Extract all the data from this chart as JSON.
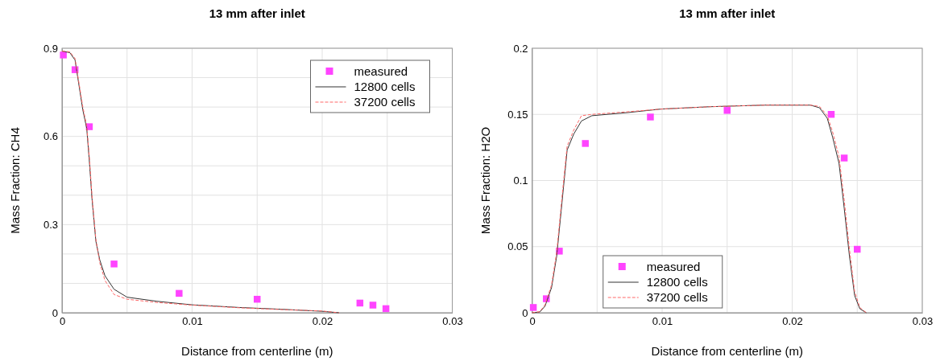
{
  "chart_data": [
    {
      "type": "line",
      "title": "13 mm after inlet",
      "xlabel": "Distance from centerline (m)",
      "ylabel": "Mass Fraction: CH4",
      "xlim": [
        0,
        0.03
      ],
      "ylim": [
        0,
        0.9
      ],
      "xticks": [
        0,
        {
          "value": 0.005,
          "label": null
        },
        0.01,
        {
          "value": 0.015,
          "label": null
        },
        0.02,
        {
          "value": 0.025,
          "label": null
        },
        0.03
      ],
      "yticks": [
        0,
        {
          "value": 0.1,
          "label": null
        },
        {
          "value": 0.2,
          "label": null
        },
        0.3,
        {
          "value": 0.4,
          "label": null
        },
        {
          "value": 0.5,
          "label": null
        },
        0.6,
        {
          "value": 0.7,
          "label": null
        },
        {
          "value": 0.8,
          "label": null
        },
        0.9
      ],
      "grid": true,
      "legend": "top right",
      "series": [
        {
          "name": "measured",
          "type": "scatter",
          "marker": "square",
          "color": "#ff44ff",
          "x": [
            0.0001,
            0.001,
            0.0021,
            0.004,
            0.009,
            0.015,
            0.0229,
            0.0239,
            0.0249
          ],
          "values": [
            0.877,
            0.827,
            0.633,
            0.166,
            0.066,
            0.046,
            0.033,
            0.026,
            0.014
          ]
        },
        {
          "name": "12800 cells",
          "type": "line",
          "line_style": "solid",
          "color": "#333333",
          "x": [
            0,
            0.0006,
            0.001,
            0.0016,
            0.0019,
            0.0021,
            0.0023,
            0.0026,
            0.0029,
            0.0033,
            0.004,
            0.005,
            0.0073,
            0.01,
            0.0136,
            0.0168,
            0.02,
            0.0213
          ],
          "values": [
            0.89,
            0.885,
            0.86,
            0.69,
            0.627,
            0.517,
            0.39,
            0.244,
            0.18,
            0.126,
            0.08,
            0.053,
            0.039,
            0.027,
            0.018,
            0.012,
            0.005,
            0
          ]
        },
        {
          "name": "37200 cells",
          "type": "line",
          "line_style": "dashed",
          "color": "#ff6666",
          "x": [
            0,
            0.0006,
            0.001,
            0.0016,
            0.0019,
            0.0021,
            0.0023,
            0.0026,
            0.0029,
            0.0033,
            0.004,
            0.005,
            0.0073,
            0.01,
            0.0136,
            0.0168,
            0.02,
            0.0213
          ],
          "values": [
            0.89,
            0.888,
            0.865,
            0.7,
            0.635,
            0.53,
            0.4,
            0.25,
            0.17,
            0.11,
            0.062,
            0.046,
            0.035,
            0.026,
            0.017,
            0.011,
            0.006,
            0
          ]
        }
      ]
    },
    {
      "type": "line",
      "title": "13 mm after inlet",
      "xlabel": "Distance from centerline (m)",
      "ylabel": "Mass Fraction: H2O",
      "xlim": [
        0,
        0.03
      ],
      "ylim": [
        0,
        0.2
      ],
      "xticks": [
        0,
        {
          "value": 0.005,
          "label": null
        },
        0.01,
        {
          "value": 0.015,
          "label": null
        },
        0.02,
        {
          "value": 0.025,
          "label": null
        },
        0.03
      ],
      "yticks": [
        0,
        0.05,
        0.1,
        0.15,
        0.2
      ],
      "grid": true,
      "legend": "bottom",
      "series": [
        {
          "name": "measured",
          "type": "scatter",
          "marker": "square",
          "color": "#ff44ff",
          "x": [
            0.0001,
            0.0011,
            0.0021,
            0.0041,
            0.0091,
            0.015,
            0.023,
            0.024,
            0.025
          ],
          "values": [
            0.004,
            0.0106,
            0.0466,
            0.128,
            0.148,
            0.153,
            0.15,
            0.117,
            0.048
          ]
        },
        {
          "name": "12800 cells",
          "type": "line",
          "line_style": "solid",
          "color": "#333333",
          "x": [
            0,
            0.0006,
            0.001,
            0.0015,
            0.0019,
            0.0023,
            0.0027,
            0.0032,
            0.0038,
            0.0046,
            0.0074,
            0.0099,
            0.0137,
            0.0179,
            0.0214,
            0.0221,
            0.0227,
            0.0231,
            0.0236,
            0.024,
            0.0244,
            0.0248,
            0.0252,
            0.0257
          ],
          "values": [
            0,
            0.0006,
            0.005,
            0.019,
            0.043,
            0.083,
            0.123,
            0.135,
            0.145,
            0.149,
            0.1514,
            0.154,
            0.1558,
            0.157,
            0.157,
            0.155,
            0.147,
            0.133,
            0.113,
            0.079,
            0.043,
            0.013,
            0.003,
            0
          ]
        },
        {
          "name": "37200 cells",
          "type": "line",
          "line_style": "dashed",
          "color": "#ff6666",
          "x": [
            0,
            0.0006,
            0.001,
            0.0015,
            0.0019,
            0.0023,
            0.0027,
            0.0032,
            0.0038,
            0.0046,
            0.0074,
            0.0099,
            0.0137,
            0.0179,
            0.0214,
            0.0221,
            0.0227,
            0.0231,
            0.0236,
            0.024,
            0.0244,
            0.0248,
            0.0252,
            0.0257
          ],
          "values": [
            0,
            0.0008,
            0.006,
            0.021,
            0.046,
            0.087,
            0.126,
            0.138,
            0.149,
            0.15,
            0.152,
            0.154,
            0.1558,
            0.157,
            0.157,
            0.156,
            0.149,
            0.137,
            0.118,
            0.085,
            0.048,
            0.016,
            0.004,
            0
          ]
        }
      ]
    }
  ]
}
